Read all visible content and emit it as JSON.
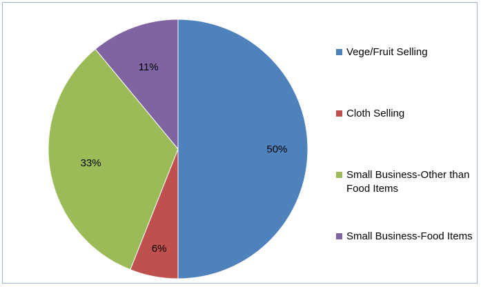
{
  "chart_data": {
    "type": "pie",
    "title": "",
    "slices": [
      {
        "label": "Vege/Fruit Selling",
        "value": 50,
        "display": "50%",
        "color": "#4f81bd"
      },
      {
        "label": "Cloth Selling",
        "value": 6,
        "display": "6%",
        "color": "#c0504d"
      },
      {
        "label": "Small Business-Other than Food Items",
        "value": 33,
        "display": "33%",
        "color": "#9bbb59"
      },
      {
        "label": "Small Business-Food Items",
        "value": 11,
        "display": "11%",
        "color": "#8064a2"
      }
    ],
    "start_angle_deg": 0,
    "direction": "clockwise",
    "legend_placement": "right"
  }
}
